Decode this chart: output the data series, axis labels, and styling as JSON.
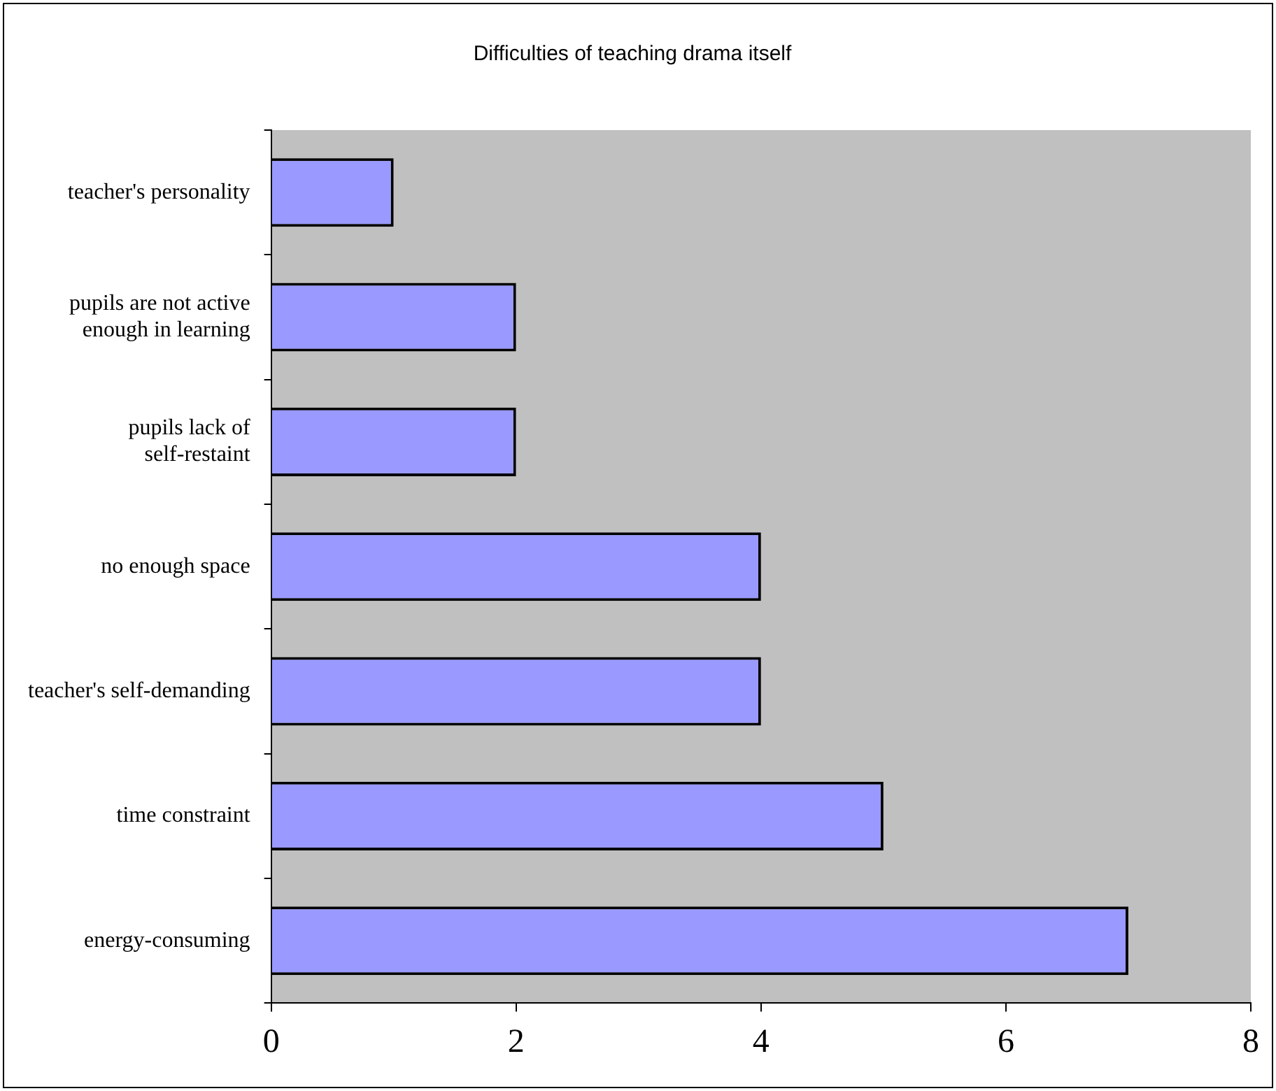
{
  "chart_data": {
    "type": "bar",
    "orientation": "horizontal",
    "title": "Difficulties of teaching drama itself",
    "categories": [
      "teacher's personality",
      "pupils are not active enough in learning",
      "pupils lack of self-restaint",
      "no enough space",
      "teacher's self-demanding",
      "time constraint",
      "energy-consuming"
    ],
    "values": [
      1,
      2,
      2,
      4,
      4,
      5,
      7
    ],
    "color": "#9999ff",
    "xlim": [
      0,
      8
    ],
    "xticks": [
      0,
      2,
      4,
      6,
      8
    ],
    "grid": false,
    "legend": false
  }
}
